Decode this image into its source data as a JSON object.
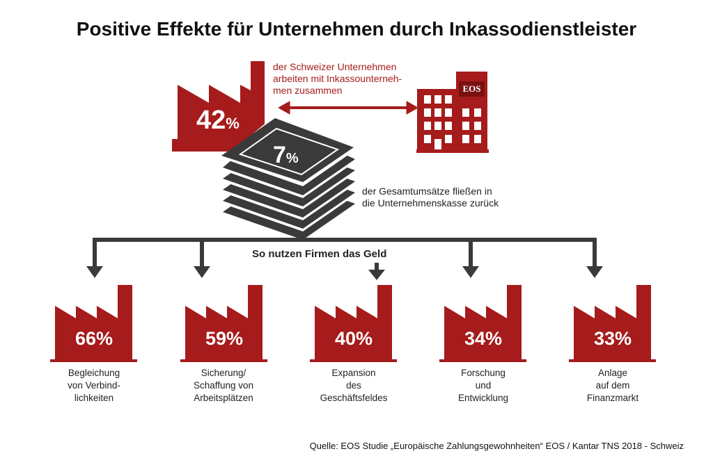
{
  "title": "Positive Effekte für Unternehmen durch Inkassodienstleister",
  "top": {
    "factory_value": "42",
    "factory_unit": "%",
    "desc_line1": "der Schweizer Unternehmen",
    "desc_line2": "arbeiten mit Inkassounterneh-",
    "desc_line3": "men zusammen",
    "building_sign": "EOS"
  },
  "money": {
    "value": "7",
    "unit": "%",
    "desc_line1": "der Gesamtumsätze fließen in",
    "desc_line2": "die Unternehmenskasse zurück"
  },
  "usage_heading": "So nutzen Firmen das Geld",
  "usage": [
    {
      "value": "66%",
      "line1": "Begleichung",
      "line2": "von Verbind-",
      "line3": "lichkeiten"
    },
    {
      "value": "59%",
      "line1": "Sicherung/",
      "line2": "Schaffung von",
      "line3": "Arbeitsplätzen"
    },
    {
      "value": "40%",
      "line1": "Expansion",
      "line2": "des",
      "line3": "Geschäftsfeldes"
    },
    {
      "value": "34%",
      "line1": "Forschung",
      "line2": "und",
      "line3": "Entwicklung"
    },
    {
      "value": "33%",
      "line1": "Anlage",
      "line2": "auf dem",
      "line3": "Finanzmarkt"
    }
  ],
  "source": "Quelle: EOS Studie „Europäische Zahlungsgewohnheiten“ EOS / Kantar TNS 2018 - Schweiz",
  "colors": {
    "accent": "#a61b1b",
    "dark": "#3a3a3a"
  }
}
